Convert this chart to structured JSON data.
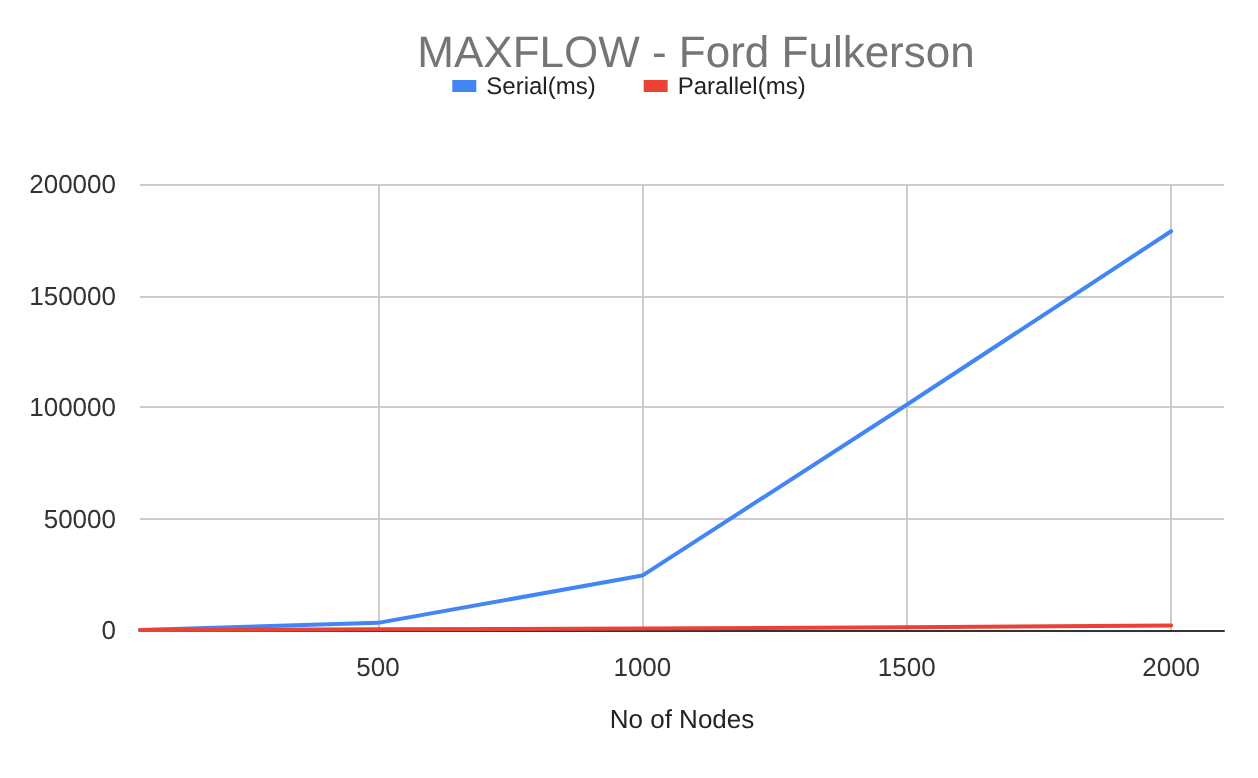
{
  "chart_data": {
    "type": "line",
    "title": "MAXFLOW - Ford Fulkerson",
    "xlabel": "No of Nodes",
    "x": [
      50,
      500,
      1000,
      1500,
      2000
    ],
    "series": [
      {
        "name": "Serial(ms)",
        "color": "#4285f4",
        "values": [
          0,
          3200,
          24400,
          101000,
          178800
        ]
      },
      {
        "name": "Parallel(ms)",
        "color": "#ea4335",
        "values": [
          0,
          300,
          700,
          1200,
          2000
        ]
      }
    ],
    "xlim": [
      50,
      2100
    ],
    "xticks": [
      500,
      1000,
      1500,
      2000
    ],
    "ylim": [
      0,
      200000
    ],
    "yticks": [
      0,
      50000,
      100000,
      150000,
      200000
    ],
    "grid": true,
    "legend": "top",
    "marker": "none",
    "line_style": "solid"
  }
}
